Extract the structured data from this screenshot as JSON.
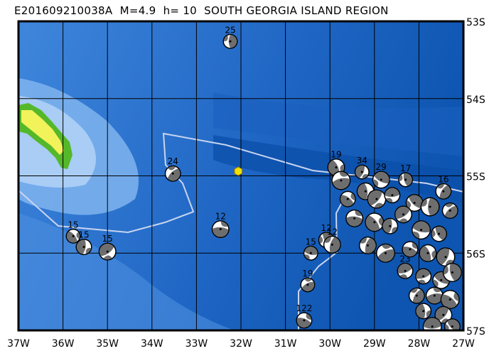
{
  "title": "E201609210038A  M=4.9  h= 10  SOUTH GEORGIA ISLAND REGION",
  "map": {
    "lon_range": [
      -37,
      -27
    ],
    "lat_range": [
      -57,
      -53
    ],
    "x_ticks": [
      "37W",
      "36W",
      "35W",
      "34W",
      "33W",
      "32W",
      "31W",
      "30W",
      "29W",
      "28W",
      "27W"
    ],
    "y_ticks": [
      "53S",
      "54S",
      "55S",
      "56S",
      "57S"
    ],
    "colors": {
      "ocean_deep": "#0b4fa8",
      "ocean": "#2a73d0",
      "shelf": "#7fb4ef",
      "land_low": "#55b82a",
      "land_high": "#f2f25a",
      "mechanism": "#6e6e6e",
      "boundary": "#c8d4f0",
      "epicenter": "#f5e000"
    },
    "epicenter": {
      "lon": -32.06,
      "lat": -54.94
    },
    "events": [
      {
        "lon": -32.24,
        "lat": -53.26,
        "depth": "25"
      },
      {
        "lon": -33.53,
        "lat": -54.97,
        "depth": "24"
      },
      {
        "lon": -32.46,
        "lat": -55.69,
        "depth": "12"
      },
      {
        "lon": -35.77,
        "lat": -55.78,
        "depth": "15"
      },
      {
        "lon": -35.53,
        "lat": -55.92,
        "depth": "15"
      },
      {
        "lon": -35.0,
        "lat": -55.98,
        "depth": "15"
      },
      {
        "lon": -30.43,
        "lat": -56.0,
        "depth": "15"
      },
      {
        "lon": -30.08,
        "lat": -55.83,
        "depth": "12"
      },
      {
        "lon": -29.95,
        "lat": -55.89,
        "depth": "12"
      },
      {
        "lon": -30.5,
        "lat": -56.41,
        "depth": "19"
      },
      {
        "lon": -30.58,
        "lat": -56.87,
        "depth": "122"
      },
      {
        "lon": -29.86,
        "lat": -54.89,
        "depth": "19"
      },
      {
        "lon": -29.28,
        "lat": -54.95,
        "depth": "34"
      },
      {
        "lon": -28.31,
        "lat": -56.23,
        "depth": "23"
      },
      {
        "lon": -28.85,
        "lat": -55.05,
        "depth": "29"
      },
      {
        "lon": -28.3,
        "lat": -55.05,
        "depth": "17"
      },
      {
        "lon": -27.45,
        "lat": -55.2,
        "depth": "16"
      },
      {
        "lon": -29.75,
        "lat": -55.06,
        "depth": ""
      },
      {
        "lon": -29.6,
        "lat": -55.3,
        "depth": ""
      },
      {
        "lon": -29.2,
        "lat": -55.2,
        "depth": ""
      },
      {
        "lon": -28.95,
        "lat": -55.3,
        "depth": ""
      },
      {
        "lon": -28.6,
        "lat": -55.25,
        "depth": ""
      },
      {
        "lon": -28.1,
        "lat": -55.35,
        "depth": ""
      },
      {
        "lon": -27.75,
        "lat": -55.4,
        "depth": ""
      },
      {
        "lon": -27.3,
        "lat": -55.45,
        "depth": ""
      },
      {
        "lon": -29.45,
        "lat": -55.55,
        "depth": ""
      },
      {
        "lon": -29.0,
        "lat": -55.6,
        "depth": ""
      },
      {
        "lon": -28.65,
        "lat": -55.65,
        "depth": ""
      },
      {
        "lon": -28.35,
        "lat": -55.5,
        "depth": ""
      },
      {
        "lon": -27.95,
        "lat": -55.7,
        "depth": ""
      },
      {
        "lon": -27.55,
        "lat": -55.75,
        "depth": ""
      },
      {
        "lon": -29.15,
        "lat": -55.9,
        "depth": ""
      },
      {
        "lon": -28.75,
        "lat": -56.0,
        "depth": ""
      },
      {
        "lon": -28.2,
        "lat": -55.95,
        "depth": ""
      },
      {
        "lon": -27.8,
        "lat": -56.0,
        "depth": ""
      },
      {
        "lon": -27.4,
        "lat": -56.05,
        "depth": ""
      },
      {
        "lon": -27.9,
        "lat": -56.3,
        "depth": ""
      },
      {
        "lon": -27.5,
        "lat": -56.35,
        "depth": ""
      },
      {
        "lon": -27.25,
        "lat": -56.25,
        "depth": ""
      },
      {
        "lon": -28.05,
        "lat": -56.55,
        "depth": ""
      },
      {
        "lon": -27.65,
        "lat": -56.55,
        "depth": ""
      },
      {
        "lon": -27.3,
        "lat": -56.6,
        "depth": ""
      },
      {
        "lon": -27.9,
        "lat": -56.75,
        "depth": ""
      },
      {
        "lon": -27.45,
        "lat": -56.8,
        "depth": ""
      },
      {
        "lon": -27.7,
        "lat": -56.95,
        "depth": ""
      },
      {
        "lon": -27.25,
        "lat": -56.95,
        "depth": ""
      }
    ]
  }
}
